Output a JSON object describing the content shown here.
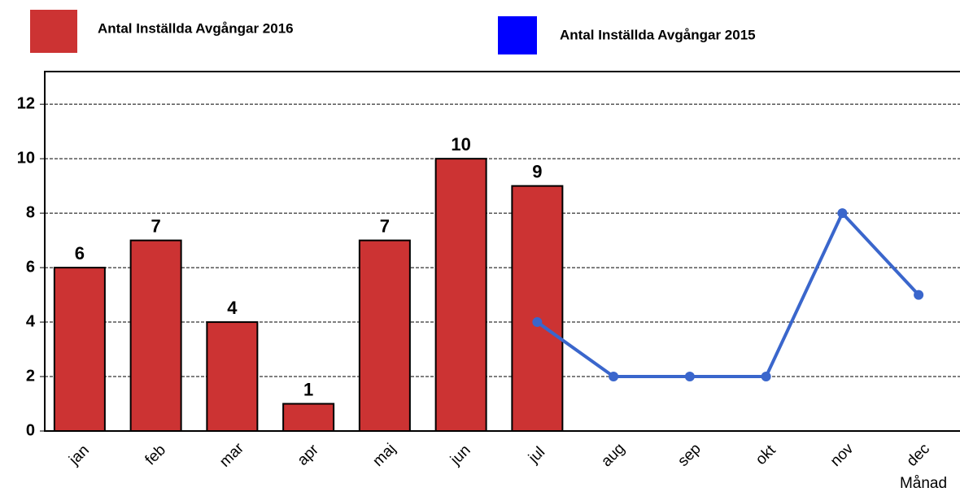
{
  "chart_data": {
    "type": "bar",
    "categories": [
      "jan",
      "feb",
      "mar",
      "apr",
      "maj",
      "jun",
      "jul",
      "aug",
      "sep",
      "okt",
      "nov",
      "dec"
    ],
    "x_label": "Månad",
    "series": [
      {
        "name": "Antal Inställda Avgångar 2016",
        "type": "bar",
        "color": "#cc3333",
        "values": [
          6,
          7,
          4,
          1,
          7,
          10,
          9,
          null,
          null,
          null,
          null,
          null
        ]
      },
      {
        "name": "Antal Inställda Avgångar 2015",
        "type": "line",
        "color": "#3a66cc",
        "legend_color": "#0000ff",
        "values": [
          null,
          null,
          null,
          null,
          null,
          null,
          4,
          2,
          2,
          2,
          8,
          5
        ]
      }
    ],
    "ylim": [
      0,
      13.2
    ],
    "yticks": [
      0,
      2,
      4,
      6,
      8,
      10,
      12
    ],
    "grid": true
  }
}
